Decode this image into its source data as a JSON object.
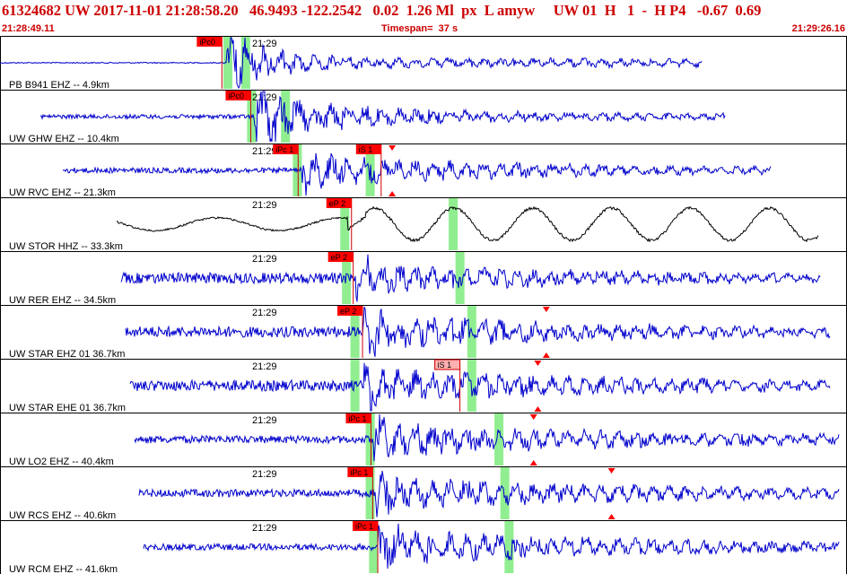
{
  "header": {
    "event_line": "61324682 UW 2017-11-01 21:28:58.20   46.9493 -122.2542   0.02  1.26 Ml  px  L amyw     UW 01  H   1  -  H P4   -0.67  0.69",
    "start_time": "21:28:49.11",
    "timespan": "Timespan=  37 s",
    "end_time": "21:29:26.16"
  },
  "colors": {
    "trace": "#0000cc",
    "trace_alt": "#000000",
    "pick_flag": "#ff0000",
    "pick_flag_light": "#ffb0b0",
    "window": "#90ee90",
    "text": "#cc0000"
  },
  "time_tick_label": "21:29",
  "traces": [
    {
      "label": "PB B941 EHZ -- 4.9km",
      "color": "#0000cc",
      "onset": 0.267,
      "end": 0.828,
      "amp": 0.55,
      "pre_noise": 0.01,
      "post_decay": 0.18,
      "picks": [
        {
          "text": "iPc0",
          "at": 0.262,
          "style": "dark"
        }
      ],
      "windows": [
        0.268,
        0.289
      ],
      "marker_ticks": []
    },
    {
      "label": "UW GHW EHZ -- 10.4km",
      "color": "#0000cc",
      "onset": 0.3,
      "end": 0.856,
      "amp": 0.45,
      "pre_noise": 0.04,
      "post_decay": 0.35,
      "picks": [
        {
          "text": "iPc0",
          "at": 0.296,
          "style": "dark"
        }
      ],
      "windows": [
        0.296,
        0.336
      ],
      "marker_ticks": []
    },
    {
      "label": "UW RVC EHZ -- 21.3km",
      "color": "#0000cc",
      "onset": 0.355,
      "end": 0.91,
      "amp": 0.35,
      "pre_noise": 0.05,
      "post_decay": 0.6,
      "picks": [
        {
          "text": "iPc 1",
          "at": 0.352,
          "style": "dark"
        },
        {
          "text": "iS 1",
          "at": 0.45,
          "style": "dark"
        }
      ],
      "windows": [
        0.35,
        0.436
      ],
      "marker_ticks": [
        0.463
      ]
    },
    {
      "label": "UW STOR HHZ -- 33.3km",
      "color": "#000000",
      "onset": 0.41,
      "end": 0.966,
      "amp": 0.3,
      "pre_noise": 0.12,
      "post_decay": 0.9,
      "picks": [
        {
          "text": "eP 2",
          "at": 0.415,
          "style": "dark"
        }
      ],
      "windows": [
        0.406,
        0.534
      ],
      "marker_ticks": []
    },
    {
      "label": "UW RER EHZ -- 34.5km",
      "color": "#0000cc",
      "onset": 0.42,
      "end": 0.968,
      "amp": 0.3,
      "pre_noise": 0.1,
      "post_decay": 0.9,
      "picks": [
        {
          "text": "eP 2",
          "at": 0.417,
          "style": "dark"
        }
      ],
      "windows": [
        0.408,
        0.542
      ],
      "marker_ticks": []
    },
    {
      "label": "UW STAR EHZ 01 36.7km",
      "color": "#0000cc",
      "onset": 0.428,
      "end": 0.98,
      "amp": 0.33,
      "pre_noise": 0.1,
      "post_decay": 0.95,
      "picks": [
        {
          "text": "eP 2",
          "at": 0.428,
          "style": "dark"
        }
      ],
      "windows": [
        0.418,
        0.556
      ],
      "marker_ticks": [
        0.645
      ]
    },
    {
      "label": "UW STAR EHE 01 36.7km",
      "color": "#0000cc",
      "onset": 0.43,
      "end": 0.98,
      "amp": 0.33,
      "pre_noise": 0.1,
      "post_decay": 0.95,
      "picks": [
        {
          "text": "iS 1",
          "at": 0.543,
          "style": "light"
        }
      ],
      "windows": [
        0.418,
        0.556
      ],
      "marker_ticks": [
        0.635
      ]
    },
    {
      "label": "UW LO2 EHZ -- 40.4km",
      "color": "#0000cc",
      "onset": 0.44,
      "end": 0.99,
      "amp": 0.33,
      "pre_noise": 0.07,
      "post_decay": 0.95,
      "picks": [
        {
          "text": "iPc 1",
          "at": 0.438,
          "style": "dark"
        }
      ],
      "windows": [
        0.436,
        0.588
      ],
      "marker_ticks": [
        0.63
      ]
    },
    {
      "label": "UW RCS EHZ -- 40.6km",
      "color": "#0000cc",
      "onset": 0.442,
      "end": 0.99,
      "amp": 0.33,
      "pre_noise": 0.07,
      "post_decay": 0.95,
      "picks": [
        {
          "text": "iPc 1",
          "at": 0.44,
          "style": "dark"
        }
      ],
      "windows": [
        0.436,
        0.595
      ],
      "marker_ticks": [
        0.722
      ]
    },
    {
      "label": "UW RCM EHZ -- 41.6km",
      "color": "#0000cc",
      "onset": 0.446,
      "end": 0.99,
      "amp": 0.33,
      "pre_noise": 0.06,
      "post_decay": 0.95,
      "picks": [
        {
          "text": "iPc 1",
          "at": 0.446,
          "style": "dark"
        }
      ],
      "windows": [
        0.44,
        0.6
      ],
      "marker_ticks": []
    }
  ]
}
